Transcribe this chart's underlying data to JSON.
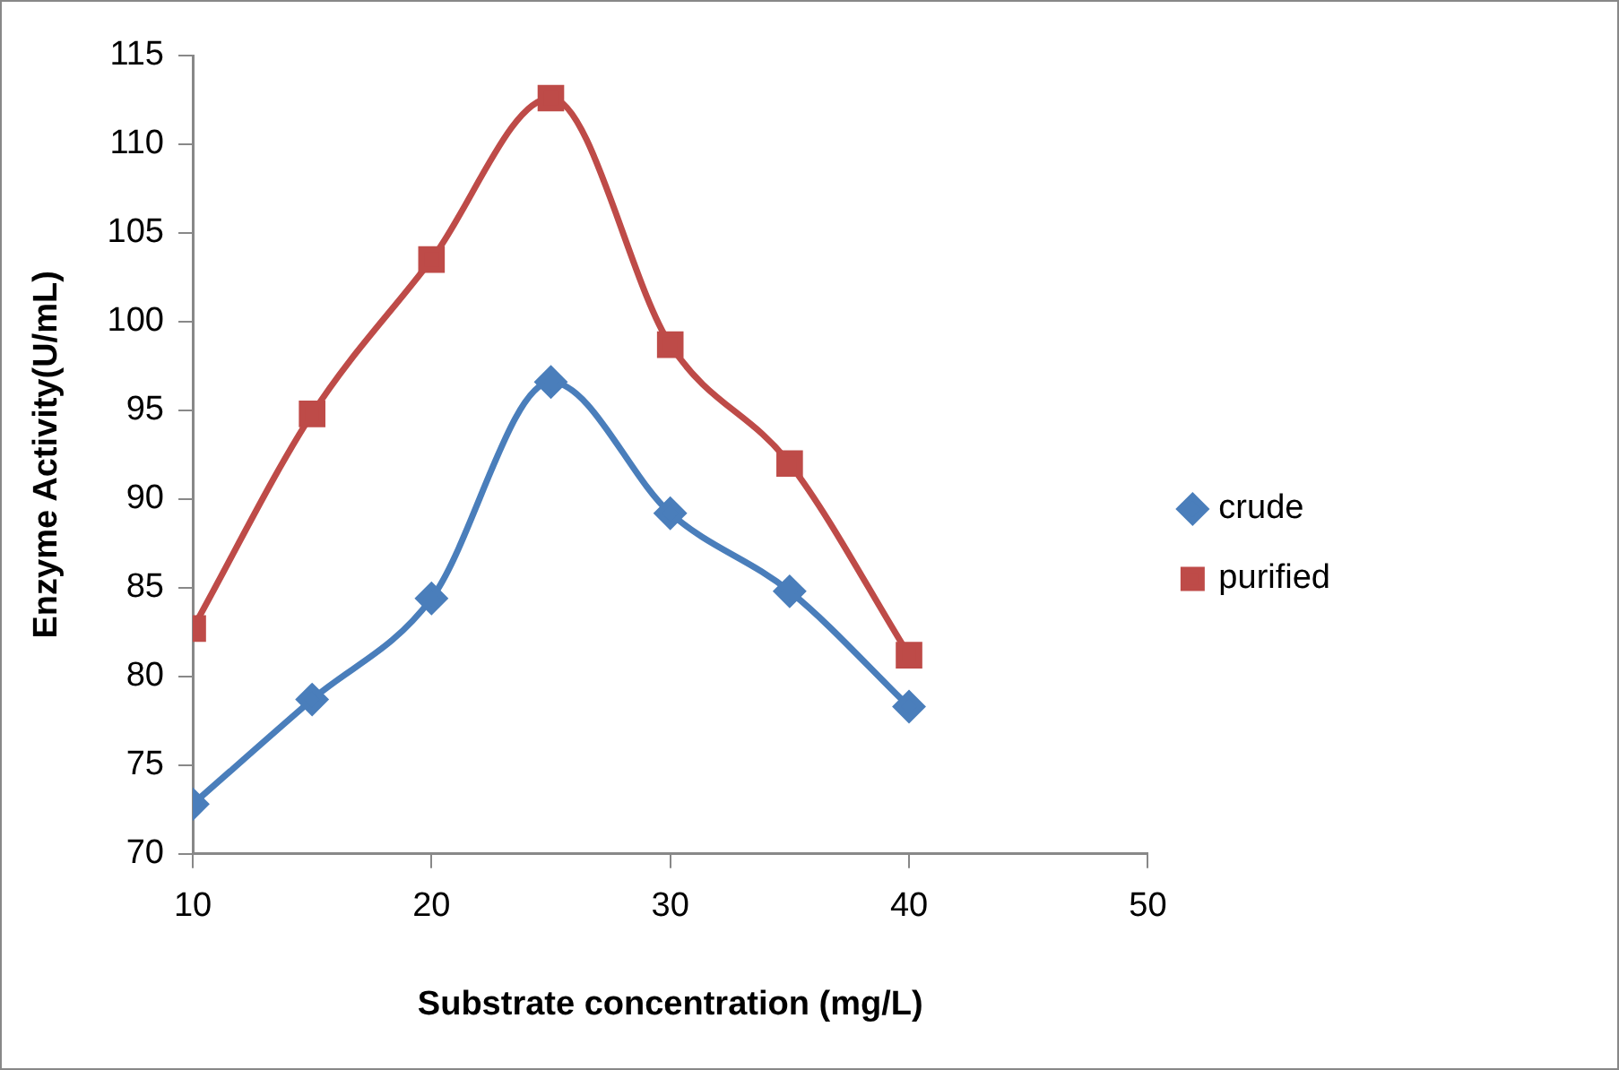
{
  "chart_data": {
    "type": "line",
    "xlabel": "Substrate concentration (mg/L)",
    "ylabel": "Enzyme Activity(U/mL)",
    "x": [
      10,
      15,
      20,
      25,
      30,
      35,
      40
    ],
    "series": [
      {
        "name": "crude",
        "color": "#4a7ebb",
        "marker": "diamond",
        "values": [
          72.8,
          78.7,
          84.4,
          96.6,
          89.2,
          84.8,
          78.3
        ]
      },
      {
        "name": "purified",
        "color": "#be4b48",
        "marker": "square",
        "values": [
          82.7,
          94.8,
          103.5,
          112.6,
          98.7,
          92.0,
          81.2
        ]
      }
    ],
    "xlim": [
      10,
      50
    ],
    "xticks": [
      10,
      20,
      30,
      40,
      50
    ],
    "ylim": [
      70,
      115
    ],
    "yticks": [
      70,
      75,
      80,
      85,
      90,
      95,
      100,
      105,
      110,
      115
    ],
    "grid": false,
    "legend": "right",
    "line_style": "solid"
  }
}
